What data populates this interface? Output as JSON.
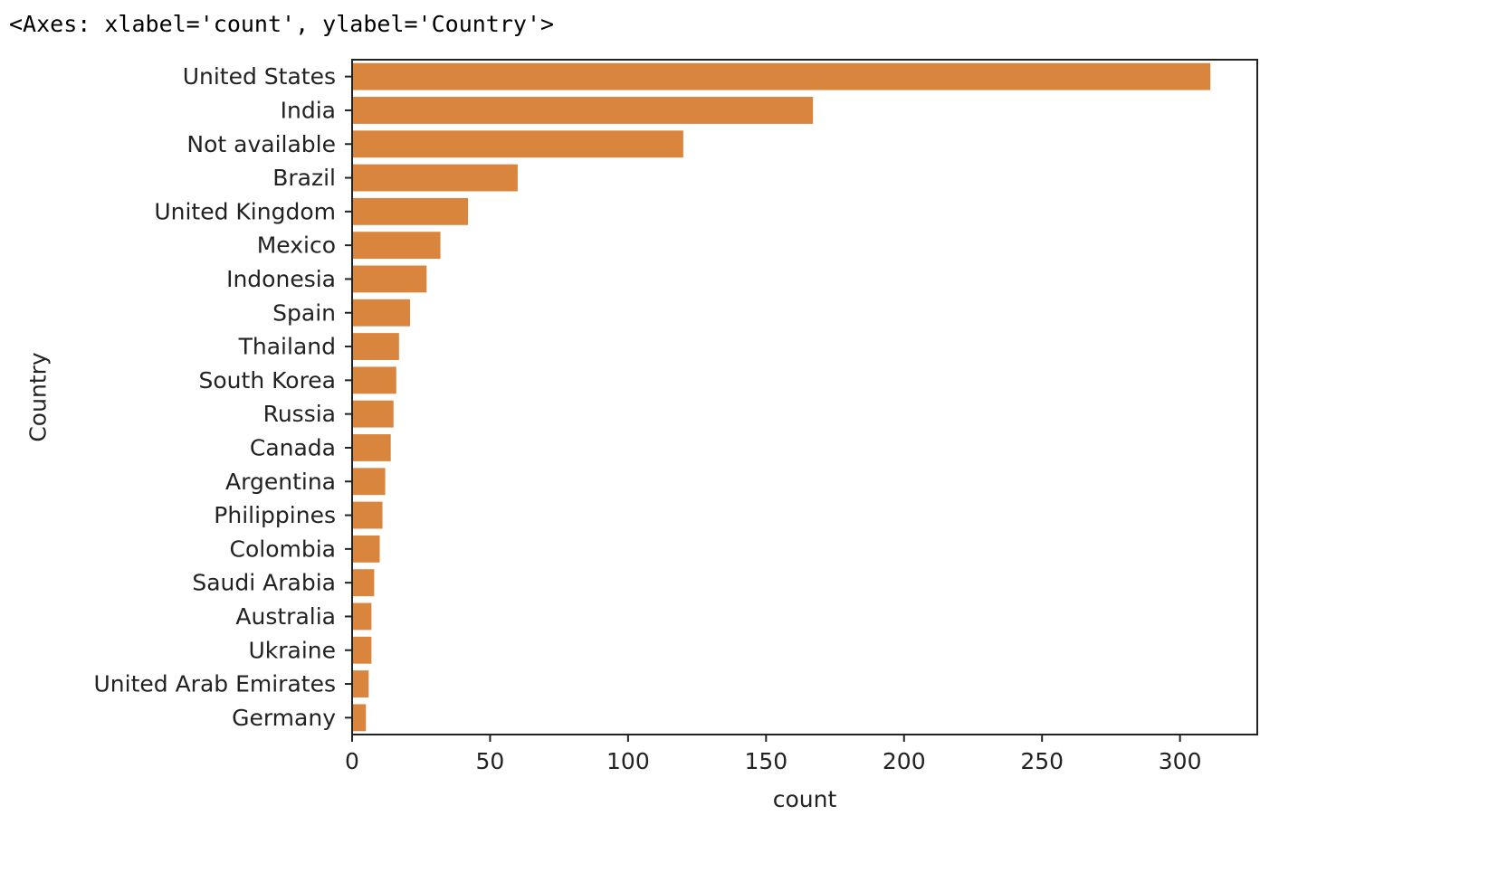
{
  "output_text": "<Axes: xlabel='count', ylabel='Country'>",
  "chart_data": {
    "type": "bar",
    "orientation": "horizontal",
    "categories": [
      "United States",
      "India",
      "Not available",
      "Brazil",
      "United Kingdom",
      "Mexico",
      "Indonesia",
      "Spain",
      "Thailand",
      "South Korea",
      "Russia",
      "Canada",
      "Argentina",
      "Philippines",
      "Colombia",
      "Saudi Arabia",
      "Australia",
      "Ukraine",
      "United Arab Emirates",
      "Germany"
    ],
    "values": [
      311,
      167,
      120,
      60,
      42,
      32,
      27,
      21,
      17,
      16,
      15,
      14,
      12,
      11,
      10,
      8,
      7,
      7,
      6,
      5
    ],
    "xlabel": "count",
    "ylabel": "Country",
    "xlim": [
      0,
      328
    ],
    "xticks": [
      0,
      50,
      100,
      150,
      200,
      250,
      300
    ],
    "bar_color": "#d9853e",
    "grid": false
  }
}
